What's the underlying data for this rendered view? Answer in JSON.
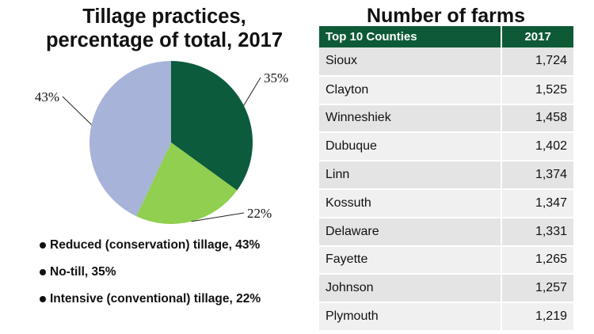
{
  "chart_data": [
    {
      "type": "pie",
      "title_line1": "Tillage practices,",
      "title_line2": "percentage of total, 2017",
      "slices": [
        {
          "name": "No-till",
          "value": 35,
          "label": "35%",
          "color": "#0c5b3c"
        },
        {
          "name": "Intensive (conventional) tillage",
          "value": 22,
          "label": "22%",
          "color": "#90cf4f"
        },
        {
          "name": "Reduced (conservation) tillage",
          "value": 43,
          "label": "43%",
          "color": "#a7b3d9"
        }
      ],
      "legend": [
        "Reduced (conservation) tillage, 43%",
        "No-till, 35%",
        "Intensive (conventional) tillage, 22%"
      ]
    },
    {
      "type": "table",
      "title": "Number of farms",
      "columns": [
        "Top 10 Counties",
        "2017"
      ],
      "rows": [
        [
          "Sioux",
          "1,724"
        ],
        [
          "Clayton",
          "1,525"
        ],
        [
          "Winneshiek",
          "1,458"
        ],
        [
          "Dubuque",
          "1,402"
        ],
        [
          "Linn",
          "1,374"
        ],
        [
          "Kossuth",
          "1,347"
        ],
        [
          "Delaware",
          "1,331"
        ],
        [
          "Fayette",
          "1,265"
        ],
        [
          "Johnson",
          "1,257"
        ],
        [
          "Plymouth",
          "1,219"
        ]
      ]
    }
  ]
}
